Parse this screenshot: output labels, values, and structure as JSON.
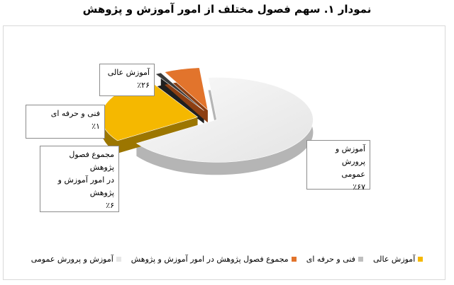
{
  "chart_data": {
    "type": "pie",
    "title": "نمودار ۱. سهم فصول مختلف از امور آموزش و پژوهش",
    "slices": [
      {
        "label": "آموزش و پرورش عمومی",
        "value": 67,
        "value_label": "٪۶۷",
        "color": "#ececec"
      },
      {
        "label": "آموزش عالی",
        "value": 26,
        "value_label": "٪۲۶",
        "color": "#f5b800"
      },
      {
        "label": "فنی و حرفه ای",
        "value": 1,
        "value_label": "٪۱",
        "color": "#3a3a3a"
      },
      {
        "label": "مجموع فصول پژوهش در امور آموزش و پژوهش",
        "value": 6,
        "value_label": "٪۶",
        "color": "#e2742c"
      }
    ],
    "legend_position": "bottom",
    "style": "3d exploded pie"
  },
  "callouts": {
    "general": {
      "line1": "آموزش و پرورش",
      "line2": "عمومی",
      "value": "٪۶۷"
    },
    "higher": {
      "line1": "آموزش عالی",
      "value": "٪۲۶"
    },
    "technical": {
      "line1": "فنی و حرفه ای",
      "value": "٪۱"
    },
    "research": {
      "line1": "مجموع فصول پژوهش",
      "line2": "در امور آموزش و",
      "line3": "پژوهش",
      "value": "٪۶"
    }
  },
  "legend": [
    {
      "label": "آموزش عالی",
      "color": "#f5b800"
    },
    {
      "label": "فنی و حرفه ای",
      "color": "#bfbfbf"
    },
    {
      "label": "مجموع فصول پژوهش در امور آموزش و پژوهش",
      "color": "#e2742c"
    },
    {
      "label": "آموزش و پرورش عمومی",
      "color": "#e6e6e6"
    }
  ]
}
